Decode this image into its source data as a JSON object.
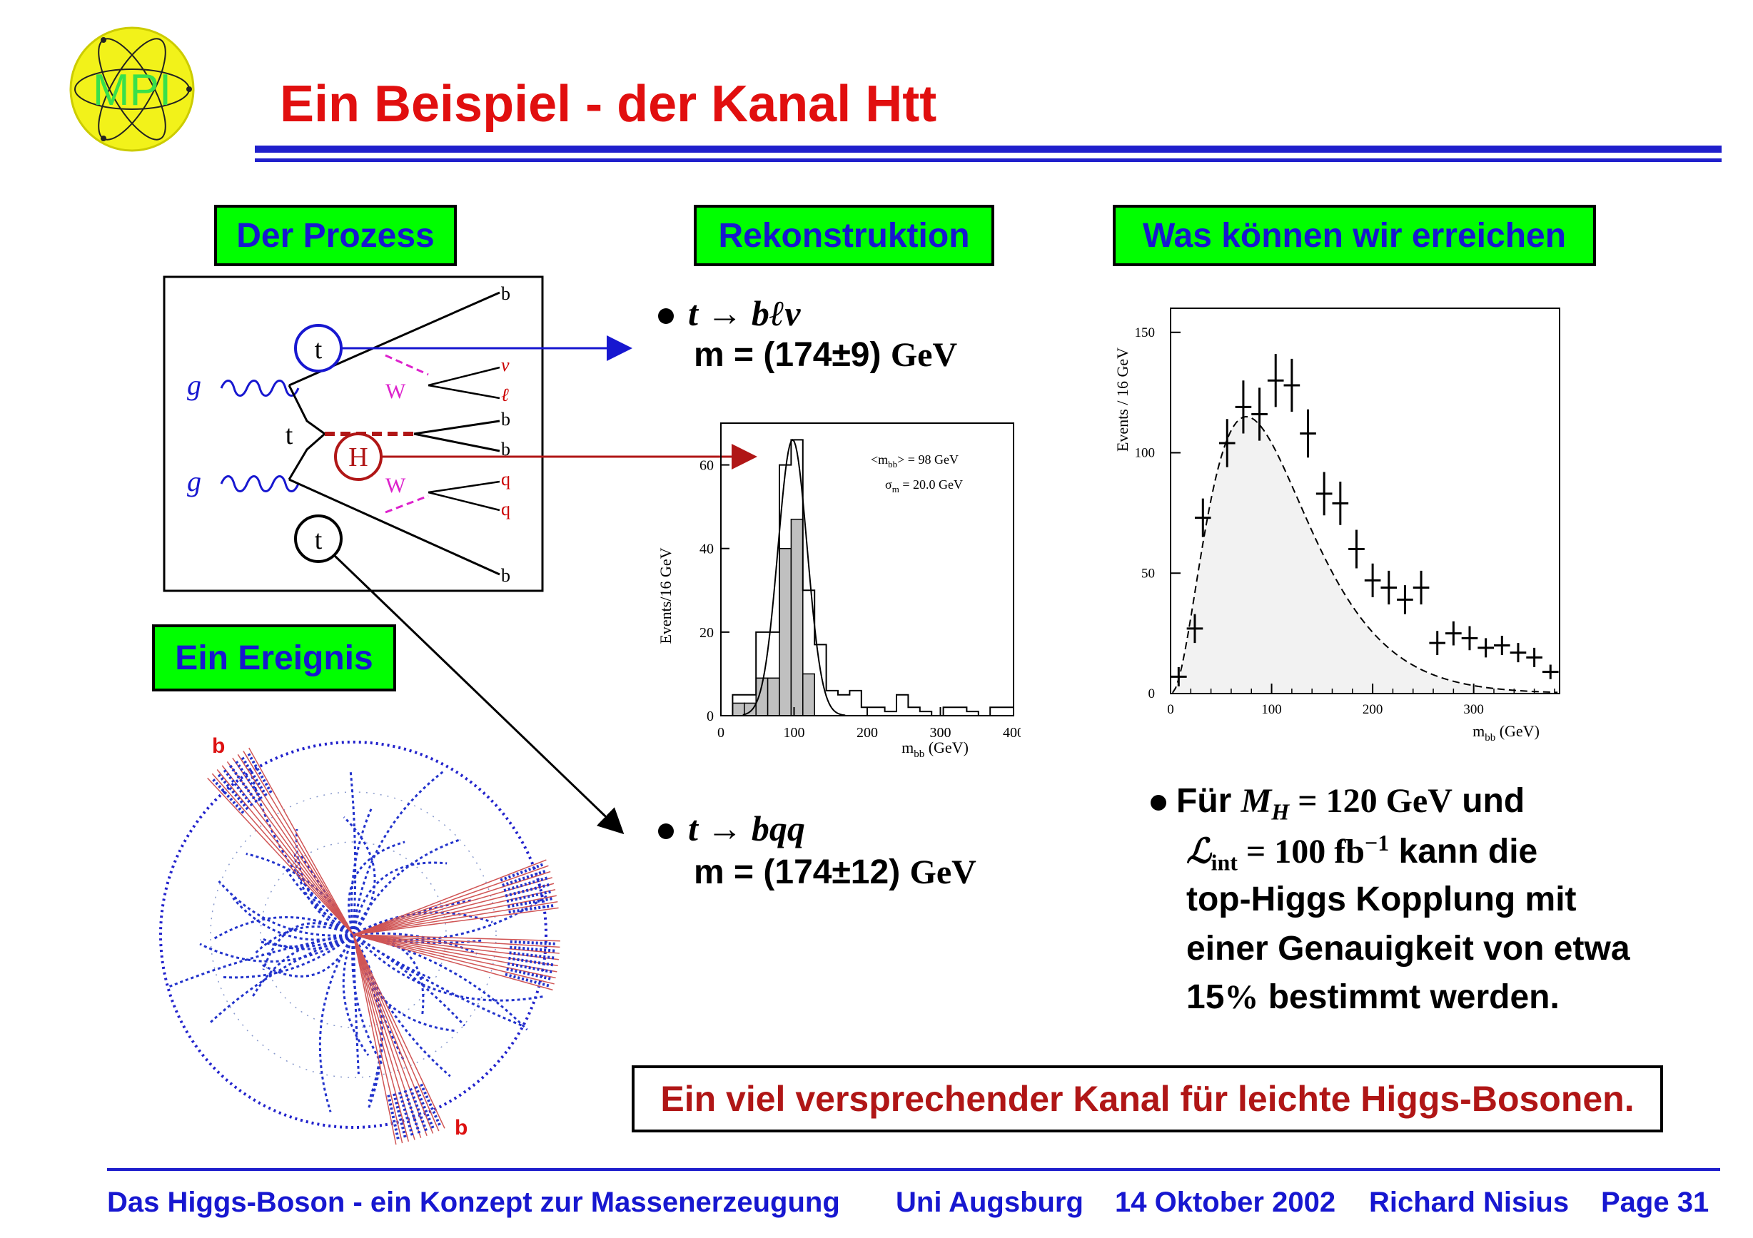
{
  "logo": {
    "text": "MPI"
  },
  "title": "Ein Beispiel - der Kanal Htt",
  "section_headers": {
    "process": "Der Prozess",
    "reconstruction": "Rekonstruktion",
    "reach": "Was können wir erreichen",
    "event": "Ein Ereignis"
  },
  "feynman": {
    "labels": {
      "g1": "g",
      "g2": "g",
      "t_top": "t",
      "t_mid": "t",
      "t_bottom": "t",
      "H": "H",
      "W1": "W",
      "W2": "W",
      "b1": "b",
      "nu": "ν",
      "ell": "ℓ",
      "b2": "b",
      "b3": "b",
      "q1": "q",
      "q2": "q",
      "b4": "b"
    }
  },
  "reco": {
    "decay1": "t → bℓν",
    "mass1_prefix": "m = (174±9) ",
    "mass1_unit": "GeV",
    "decay2": "t → bqq",
    "mass2_prefix": "m = (174±12) ",
    "mass2_unit": "GeV"
  },
  "hist_small": {
    "ylabel": "Events/16 GeV",
    "xlabel": "m",
    "xlabel_sub": "bb",
    "xlabel_unit": " (GeV)",
    "annot1": "<m",
    "annot1_sub": "bb",
    "annot1_end": "> = 98 GeV",
    "annot2": "σ",
    "annot2_sub": "m",
    "annot2_end": " = 20.0 GeV",
    "xticks": [
      "0",
      "100",
      "200",
      "300",
      "400"
    ],
    "yticks": [
      "0",
      "20",
      "40",
      "60"
    ]
  },
  "event_display": {
    "label_top": "b",
    "label_bottom": "b"
  },
  "chart_data": [
    {
      "type": "bar",
      "ylabel": "Events/16 GeV",
      "xlabel": "m_bb (GeV)",
      "xlim": [
        0,
        400
      ],
      "ylim": [
        0,
        70
      ],
      "bin_width": 16,
      "x": [
        8,
        24,
        40,
        56,
        72,
        88,
        104,
        120,
        136,
        152,
        168,
        184,
        200,
        216,
        232,
        248,
        264,
        280,
        296,
        312,
        328,
        344,
        360,
        376,
        392
      ],
      "series": [
        {
          "name": "",
          "values": [
            0,
            5,
            5,
            20,
            20,
            60,
            66,
            30,
            17,
            6,
            5,
            6,
            2,
            2,
            1,
            5,
            2,
            1,
            0,
            2,
            2,
            1,
            0,
            2,
            2
          ]
        },
        {
          "name": "",
          "values": [
            0,
            3,
            3,
            9,
            9,
            40,
            47,
            10,
            0,
            0,
            0,
            0,
            0,
            0,
            0,
            0,
            0,
            0,
            0,
            0,
            0,
            0,
            0,
            0,
            0
          ]
        }
      ],
      "annotations": [
        "<m_bb> = 98 GeV",
        "σ_m = 20.0 GeV"
      ]
    },
    {
      "type": "scatter",
      "ylabel": "Events / 16 GeV",
      "xlabel": "m_bb (GeV)",
      "xlim": [
        0,
        385
      ],
      "ylim": [
        0,
        160
      ],
      "xticks": [
        0,
        100,
        200,
        300
      ],
      "yticks": [
        0,
        50,
        100,
        150
      ],
      "x": [
        8,
        24,
        32,
        56,
        72,
        88,
        104,
        120,
        136,
        152,
        168,
        184,
        200,
        216,
        232,
        248,
        264,
        280,
        296,
        312,
        328,
        344,
        360,
        376
      ],
      "y": [
        7,
        27,
        73,
        104,
        119,
        116,
        130,
        128,
        108,
        83,
        79,
        60,
        47,
        44,
        39,
        44,
        21,
        25,
        23,
        19,
        20,
        17,
        15,
        9
      ],
      "yerr": [
        4,
        6,
        8,
        10,
        11,
        11,
        11,
        11,
        10,
        9,
        9,
        8,
        7,
        7,
        6,
        7,
        5,
        5,
        5,
        4,
        4,
        4,
        4,
        3
      ]
    }
  ],
  "hist_big": {
    "ylabel": "Events / 16 GeV",
    "xlabel": "m",
    "xlabel_sub": "bb",
    "xlabel_unit": " (GeV)",
    "xticks": [
      "0",
      "100",
      "200",
      "300"
    ],
    "yticks": [
      "0",
      "50",
      "100",
      "150"
    ]
  },
  "result": {
    "line1_a": "Für ",
    "line1_math": "M",
    "line1_sub": "H",
    "line1_b": " = 120 GeV",
    "line1_c": " und",
    "line2_math": "ℒ",
    "line2_sub": "int",
    "line2_b": " = 100 fb",
    "line2_sup": "−1",
    "line2_c": " kann die",
    "line3": "top-Higgs Kopplung mit",
    "line4": "einer Genauigkeit von etwa",
    "line5_a": "15",
    "line5_pct": "%",
    "line5_b": " bestimmt werden."
  },
  "callout": "Ein viel versprechender Kanal für leichte Higgs-Bosonen.",
  "footer": {
    "talk": "Das Higgs-Boson - ein Konzept zur Massenerzeugung",
    "place": "Uni Augsburg",
    "date": "14 Oktober 2002",
    "author": "Richard Nisius",
    "page": "Page 31"
  },
  "colors": {
    "title": "#e10f0f",
    "blue": "#1717d0",
    "green": "#00ff00",
    "callout": "#b01616",
    "higgs": "#b01616",
    "w": "#dd22cc"
  }
}
